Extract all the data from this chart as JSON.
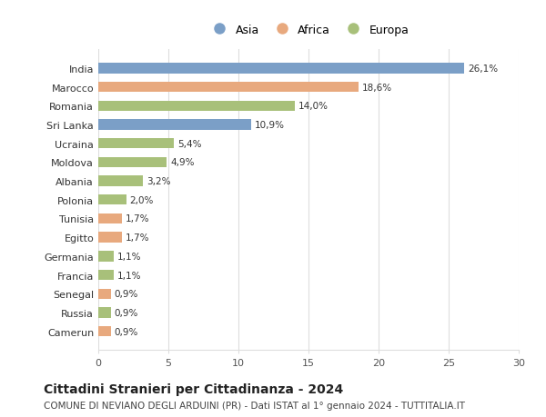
{
  "categories": [
    "Camerun",
    "Russia",
    "Senegal",
    "Francia",
    "Germania",
    "Egitto",
    "Tunisia",
    "Polonia",
    "Albania",
    "Moldova",
    "Ucraina",
    "Sri Lanka",
    "Romania",
    "Marocco",
    "India"
  ],
  "values": [
    0.9,
    0.9,
    0.9,
    1.1,
    1.1,
    1.7,
    1.7,
    2.0,
    3.2,
    4.9,
    5.4,
    10.9,
    14.0,
    18.6,
    26.1
  ],
  "labels": [
    "0,9%",
    "0,9%",
    "0,9%",
    "1,1%",
    "1,1%",
    "1,7%",
    "1,7%",
    "2,0%",
    "3,2%",
    "4,9%",
    "5,4%",
    "10,9%",
    "14,0%",
    "18,6%",
    "26,1%"
  ],
  "colors": [
    "#e8a97e",
    "#a8c07a",
    "#e8a97e",
    "#a8c07a",
    "#a8c07a",
    "#e8a97e",
    "#e8a97e",
    "#a8c07a",
    "#a8c07a",
    "#a8c07a",
    "#a8c07a",
    "#7b9fc7",
    "#a8c07a",
    "#e8a97e",
    "#7b9fc7"
  ],
  "legend_labels": [
    "Asia",
    "Africa",
    "Europa"
  ],
  "legend_colors": [
    "#7b9fc7",
    "#e8a97e",
    "#a8c07a"
  ],
  "title": "Cittadini Stranieri per Cittadinanza - 2024",
  "subtitle": "COMUNE DI NEVIANO DEGLI ARDUINI (PR) - Dati ISTAT al 1° gennaio 2024 - TUTTITALIA.IT",
  "xlim": [
    0,
    30
  ],
  "xticks": [
    0,
    5,
    10,
    15,
    20,
    25,
    30
  ],
  "bg_color": "#ffffff",
  "grid_color": "#dddddd",
  "bar_height": 0.55,
  "title_fontsize": 10,
  "subtitle_fontsize": 7.5,
  "tick_fontsize": 8,
  "label_fontsize": 7.5,
  "legend_fontsize": 9
}
